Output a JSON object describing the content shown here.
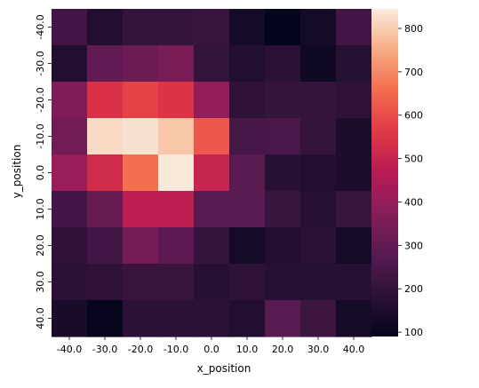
{
  "chart_data": {
    "type": "heatmap",
    "xlabel": "x_position",
    "ylabel": "y_position",
    "x_categories": [
      "-40.0",
      "-30.0",
      "-20.0",
      "-10.0",
      "0.0",
      "10.0",
      "20.0",
      "30.0",
      "40.0"
    ],
    "y_categories": [
      "-40.0",
      "-30.0",
      "-20.0",
      "-10.0",
      "0.0",
      "10.0",
      "20.0",
      "30.0",
      "40.0"
    ],
    "values": [
      [
        230,
        160,
        200,
        200,
        210,
        130,
        90,
        130,
        230
      ],
      [
        160,
        300,
        320,
        350,
        200,
        160,
        180,
        120,
        170
      ],
      [
        360,
        540,
        580,
        550,
        400,
        190,
        200,
        200,
        190
      ],
      [
        330,
        820,
        830,
        790,
        620,
        240,
        250,
        200,
        150
      ],
      [
        410,
        520,
        660,
        840,
        500,
        280,
        170,
        160,
        150
      ],
      [
        230,
        310,
        480,
        480,
        280,
        280,
        210,
        170,
        210
      ],
      [
        190,
        230,
        340,
        290,
        200,
        130,
        160,
        180,
        130
      ],
      [
        180,
        190,
        210,
        210,
        170,
        190,
        170,
        170,
        170
      ],
      [
        140,
        100,
        180,
        180,
        180,
        160,
        280,
        220,
        130
      ]
    ],
    "colorbar": {
      "min": 90,
      "max": 845,
      "ticks": [
        100,
        200,
        300,
        400,
        500,
        600,
        700,
        800
      ],
      "colormap": "rocket"
    }
  }
}
